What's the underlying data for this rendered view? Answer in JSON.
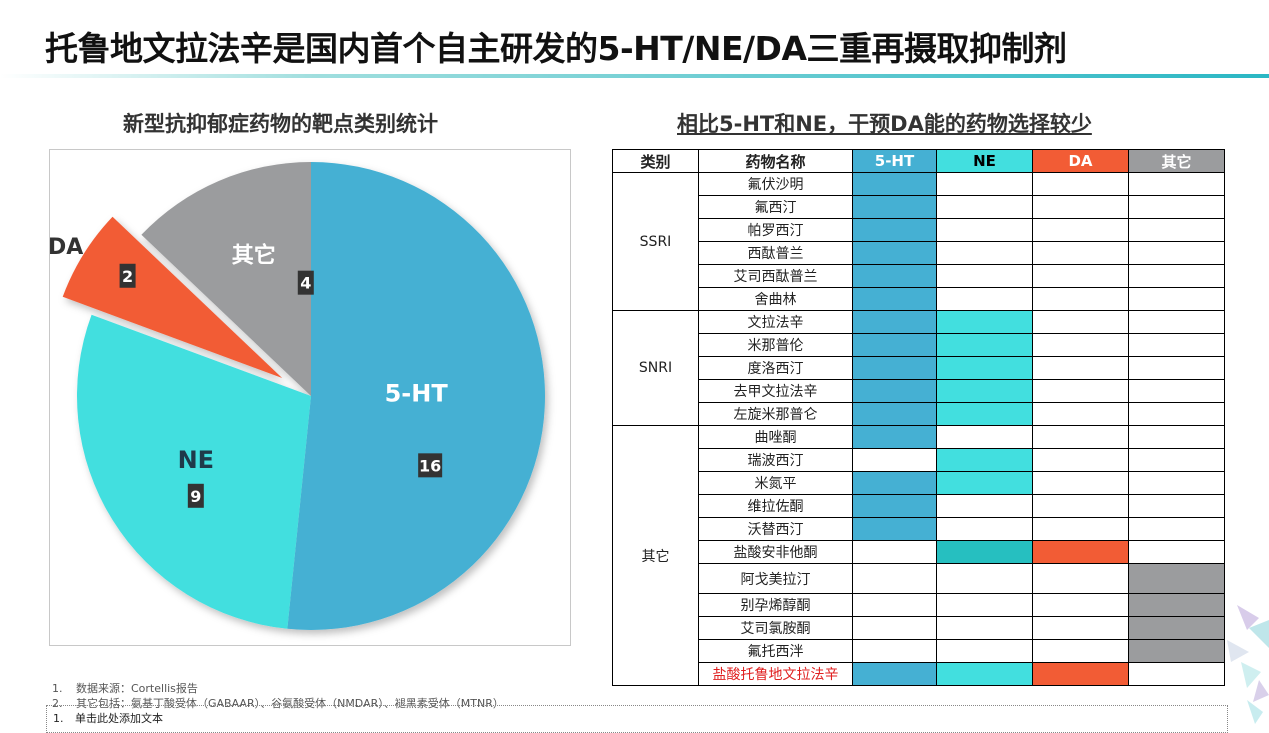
{
  "slide_title": "托鲁地文拉法辛是国内首个自主研发的5-HT/NE/DA三重再摄取抑制剂",
  "pie_title": "新型抗抑郁症药物的靶点类别统计",
  "table_title": "相比5-HT和NE，干预DA能的药物选择较少",
  "chart_data": {
    "type": "pie",
    "title": "新型抗抑郁症药物的靶点类别统计",
    "slices": [
      {
        "label": "5-HT",
        "value": 16,
        "color": "#45b0d3",
        "exploded": false
      },
      {
        "label": "NE",
        "value": 9,
        "color": "#42dfdf",
        "exploded": false
      },
      {
        "label": "DA",
        "value": 2,
        "color": "#f25c35",
        "exploded": true
      },
      {
        "label": "其它",
        "value": 4,
        "color": "#9b9c9e",
        "exploded": false
      }
    ]
  },
  "table": {
    "headers": [
      "类别",
      "药物名称",
      "5-HT",
      "NE",
      "DA",
      "其它"
    ],
    "header_colors": [
      "",
      "",
      "#45b0d3",
      "#42dfdf",
      "#f25c35",
      "#9b9c9e"
    ],
    "groups": [
      {
        "category": "SSRI",
        "rows": [
          {
            "drug": "氟伏沙明",
            "marks": [
              "5-HT"
            ]
          },
          {
            "drug": "氟西汀",
            "marks": [
              "5-HT"
            ]
          },
          {
            "drug": "帕罗西汀",
            "marks": [
              "5-HT"
            ]
          },
          {
            "drug": "西酞普兰",
            "marks": [
              "5-HT"
            ]
          },
          {
            "drug": "艾司西酞普兰",
            "marks": [
              "5-HT"
            ]
          },
          {
            "drug": "舍曲林",
            "marks": [
              "5-HT"
            ]
          }
        ]
      },
      {
        "category": "SNRI",
        "rows": [
          {
            "drug": "文拉法辛",
            "marks": [
              "5-HT",
              "NE"
            ]
          },
          {
            "drug": "米那普伦",
            "marks": [
              "5-HT",
              "NE"
            ]
          },
          {
            "drug": "度洛西汀",
            "marks": [
              "5-HT",
              "NE"
            ]
          },
          {
            "drug": "去甲文拉法辛",
            "marks": [
              "5-HT",
              "NE"
            ]
          },
          {
            "drug": "左旋米那普仑",
            "marks": [
              "5-HT",
              "NE"
            ]
          }
        ]
      },
      {
        "category": "其它",
        "rows": [
          {
            "drug": "曲唑酮",
            "marks": [
              "5-HT"
            ]
          },
          {
            "drug": "瑞波西汀",
            "marks": [
              "NE"
            ]
          },
          {
            "drug": "米氮平",
            "marks": [
              "5-HT",
              "NE"
            ]
          },
          {
            "drug": "维拉佐酮",
            "marks": [
              "5-HT"
            ]
          },
          {
            "drug": "沃替西汀",
            "marks": [
              "5-HT"
            ]
          },
          {
            "drug": "盐酸安非他酮",
            "marks": [
              "NE",
              "DA"
            ],
            "ne_color": "#26bfc0"
          },
          {
            "drug": "阿戈美拉汀",
            "marks": [
              "其它"
            ],
            "tall": true
          },
          {
            "drug": "别孕烯醇酮",
            "marks": [
              "其它"
            ]
          },
          {
            "drug": "艾司氯胺酮",
            "marks": [
              "其它"
            ]
          },
          {
            "drug": "氟托西泮",
            "marks": [
              "其它"
            ]
          },
          {
            "drug": "盐酸托鲁地文拉法辛",
            "marks": [
              "5-HT",
              "NE",
              "DA"
            ],
            "highlight": true
          }
        ]
      }
    ]
  },
  "notes": [
    {
      "num": "1.",
      "text": "数据来源：Cortellis报告"
    },
    {
      "num": "2.",
      "text": "其它包括：氨基丁酸受体（GABAAR）、谷氨酸受体（NMDAR）、褪黑素受体（MTNR）"
    }
  ],
  "placeholder_note": {
    "num": "1.",
    "text": "单击此处添加文本"
  }
}
